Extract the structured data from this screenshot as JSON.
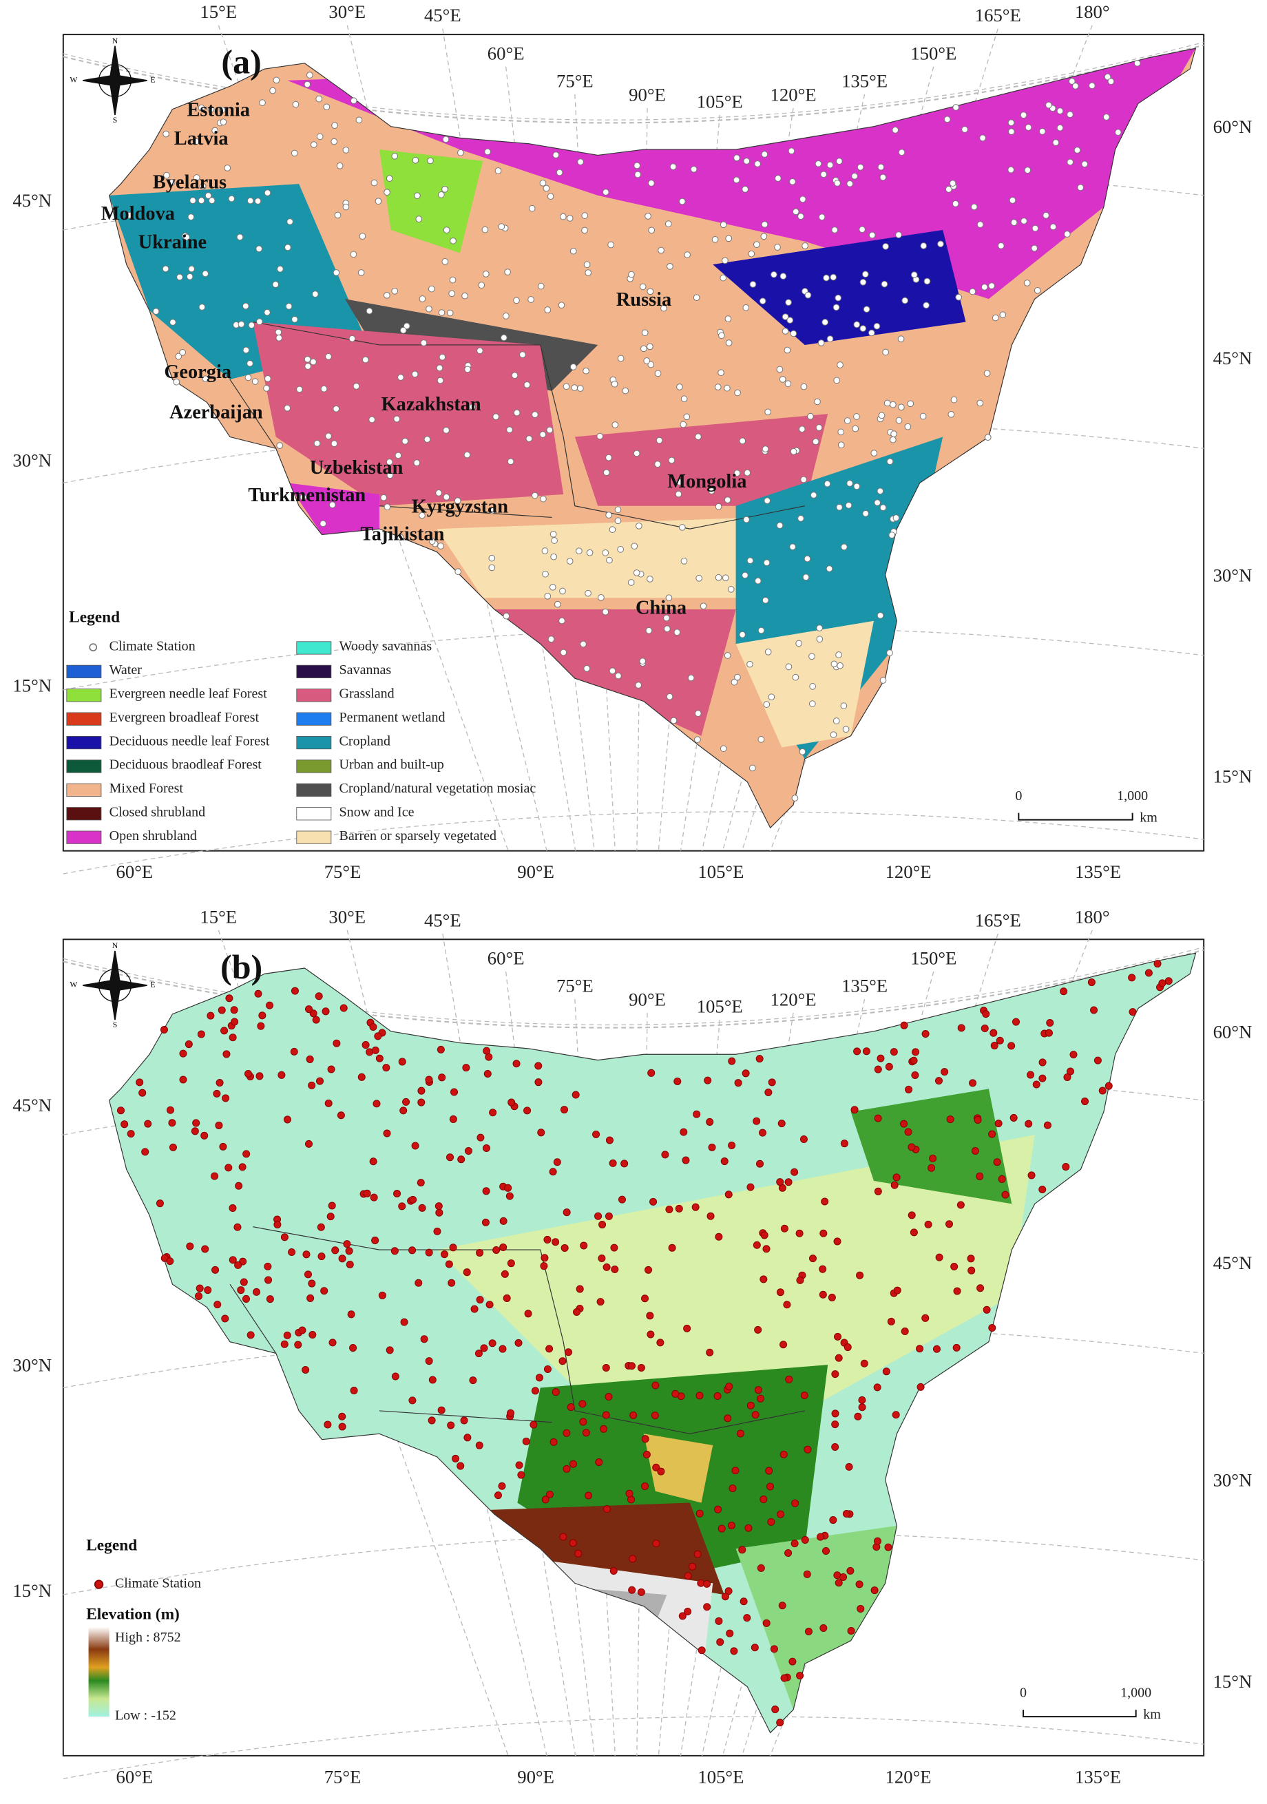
{
  "panels": [
    {
      "label": "(a)",
      "top_lon_labels": [
        "15°E",
        "30°E",
        "45°E",
        "60°E",
        "75°E",
        "90°E",
        "105°E",
        "120°E",
        "135°E",
        "150°E",
        "165°E",
        "180°"
      ],
      "bottom_lon_labels": [
        "60°E",
        "75°E",
        "90°E",
        "105°E",
        "120°E",
        "135°E"
      ],
      "left_lat_labels": [
        "45°N",
        "30°N",
        "15°N"
      ],
      "right_lat_labels": [
        "60°N",
        "45°N",
        "30°N",
        "15°N"
      ],
      "compass": [
        "N",
        "E",
        "S",
        "W"
      ],
      "countries": [
        "Estonia",
        "Latvia",
        "Byelarus",
        "Moldova",
        "Ukraine",
        "Georgia",
        "Azerbaijan",
        "Kazakhstan",
        "Russia",
        "Uzbekistan",
        "Turkmenistan",
        "Kyrgyzstan",
        "Tajikistan",
        "Mongolia",
        "China"
      ],
      "legend": {
        "title": "Legend",
        "items": [
          {
            "name": "Climate Station",
            "color": "#ffffff"
          },
          {
            "name": "Water",
            "color": "#1f5fd6"
          },
          {
            "name": "Evergreen needle leaf Forest",
            "color": "#8fe03a"
          },
          {
            "name": "Evergreen broadleaf Forest",
            "color": "#d83a1a"
          },
          {
            "name": "Deciduous needle leaf Forest",
            "color": "#1a12a8"
          },
          {
            "name": "Deciduous braodleaf Forest",
            "color": "#0d5a3a"
          },
          {
            "name": "Mixed Forest",
            "color": "#f2b48a"
          },
          {
            "name": "Closed shrubland",
            "color": "#5a1010"
          },
          {
            "name": "Open shrubland",
            "color": "#d832c8"
          },
          {
            "name": "Woody savannas",
            "color": "#40e8d0"
          },
          {
            "name": "Savannas",
            "color": "#2a0e4a"
          },
          {
            "name": "Grassland",
            "color": "#d85a7e"
          },
          {
            "name": "Permanent wetland",
            "color": "#1e7ef0"
          },
          {
            "name": "Cropland",
            "color": "#1a94a8"
          },
          {
            "name": "Urban and built-up",
            "color": "#7a9a30"
          },
          {
            "name": "Cropland/natural vegetation mosiac",
            "color": "#505050"
          },
          {
            "name": "Snow and Ice",
            "color": "#ffffff"
          },
          {
            "name": "Barren or sparsely vegetated",
            "color": "#f8e0b0"
          }
        ]
      },
      "scale_bar": {
        "start": "0",
        "end": "1,000",
        "unit": "km"
      }
    },
    {
      "label": "(b)",
      "top_lon_labels": [
        "15°E",
        "30°E",
        "45°E",
        "60°E",
        "75°E",
        "90°E",
        "105°E",
        "120°E",
        "135°E",
        "150°E",
        "165°E",
        "180°"
      ],
      "bottom_lon_labels": [
        "60°E",
        "75°E",
        "90°E",
        "105°E",
        "120°E",
        "135°E"
      ],
      "left_lat_labels": [
        "45°N",
        "30°N",
        "15°N"
      ],
      "right_lat_labels": [
        "60°N",
        "45°N",
        "30°N",
        "15°N"
      ],
      "compass": [
        "N",
        "E",
        "S",
        "W"
      ],
      "legend": {
        "title": "Legend",
        "items": [
          {
            "name": "Climate Station",
            "color": "#cc1111"
          }
        ],
        "elevation": {
          "title": "Elevation (m)",
          "high": "High : 8752",
          "low": "Low : -152"
        }
      },
      "scale_bar": {
        "start": "0",
        "end": "1,000",
        "unit": "km"
      }
    }
  ]
}
